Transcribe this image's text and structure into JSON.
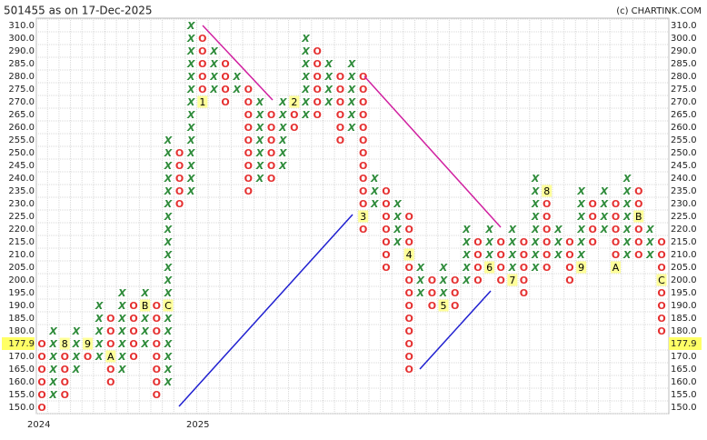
{
  "chart_data": {
    "type": "point_and_figure",
    "title": "501455 as on 17-Dec-2025",
    "watermark": "(c) CHARTINK.COM",
    "x_labels": [
      "2024",
      "2025"
    ],
    "colors": {
      "X": "#2e8b3a",
      "O": "#e53030",
      "marker_bg": "#ffff99",
      "last_bg": "#ffff66"
    },
    "grid": true,
    "yticks": [
      {
        "value": 310,
        "label": "310.0"
      },
      {
        "value": 300,
        "label": "300.0"
      },
      {
        "value": 290,
        "label": "290.0"
      },
      {
        "value": 285,
        "label": "285.0"
      },
      {
        "value": 280,
        "label": "280.0"
      },
      {
        "value": 275,
        "label": "275.0"
      },
      {
        "value": 270,
        "label": "270.0"
      },
      {
        "value": 265,
        "label": "265.0"
      },
      {
        "value": 260,
        "label": "260.0"
      },
      {
        "value": 255,
        "label": "255.0"
      },
      {
        "value": 250,
        "label": "250.0"
      },
      {
        "value": 245,
        "label": "245.0"
      },
      {
        "value": 240,
        "label": "240.0"
      },
      {
        "value": 235,
        "label": "235.0"
      },
      {
        "value": 230,
        "label": "230.0"
      },
      {
        "value": 225,
        "label": "225.0"
      },
      {
        "value": 220,
        "label": "220.0"
      },
      {
        "value": 215,
        "label": "215.0"
      },
      {
        "value": 210,
        "label": "210.0"
      },
      {
        "value": 205,
        "label": "205.0"
      },
      {
        "value": 200,
        "label": "200.0"
      },
      {
        "value": 195,
        "label": "195.0"
      },
      {
        "value": 190,
        "label": "190.0"
      },
      {
        "value": 185,
        "label": "185.0"
      },
      {
        "value": 180,
        "label": "180.0"
      },
      {
        "value": 170,
        "label": "170.0"
      },
      {
        "value": 165,
        "label": "165.0"
      },
      {
        "value": 160,
        "label": "160.0"
      },
      {
        "value": 155,
        "label": "155.0"
      },
      {
        "value": 150,
        "label": "150.0"
      }
    ],
    "last_price": {
      "value": 177.9,
      "label": "177.9"
    },
    "columns": [
      {
        "type": "O",
        "high": 175,
        "low": 150
      },
      {
        "type": "X",
        "high": 180,
        "low": 155
      },
      {
        "type": "O",
        "high": 175,
        "low": 155,
        "markers": [
          {
            "value": 175,
            "label": "8"
          }
        ]
      },
      {
        "type": "X",
        "high": 180,
        "low": 165
      },
      {
        "type": "O",
        "high": 175,
        "low": 170,
        "markers": [
          {
            "value": 175,
            "label": "9"
          }
        ]
      },
      {
        "type": "X",
        "high": 190,
        "low": 170
      },
      {
        "type": "O",
        "high": 185,
        "low": 160,
        "markers": [
          {
            "value": 170,
            "label": "A"
          }
        ]
      },
      {
        "type": "X",
        "high": 195,
        "low": 165
      },
      {
        "type": "O",
        "high": 190,
        "low": 170
      },
      {
        "type": "X",
        "high": 195,
        "low": 175,
        "markers": [
          {
            "value": 190,
            "label": "B"
          }
        ]
      },
      {
        "type": "O",
        "high": 190,
        "low": 155
      },
      {
        "type": "X",
        "high": 255,
        "low": 160,
        "markers": [
          {
            "value": 190,
            "label": "C"
          }
        ]
      },
      {
        "type": "O",
        "high": 250,
        "low": 230
      },
      {
        "type": "X",
        "high": 310,
        "low": 235
      },
      {
        "type": "O",
        "high": 300,
        "low": 270,
        "markers": [
          {
            "value": 270,
            "label": "1"
          }
        ]
      },
      {
        "type": "X",
        "high": 290,
        "low": 275
      },
      {
        "type": "O",
        "high": 285,
        "low": 270
      },
      {
        "type": "X",
        "high": 280,
        "low": 275
      },
      {
        "type": "O",
        "high": 275,
        "low": 235
      },
      {
        "type": "X",
        "high": 270,
        "low": 240
      },
      {
        "type": "O",
        "high": 265,
        "low": 240
      },
      {
        "type": "X",
        "high": 270,
        "low": 245
      },
      {
        "type": "O",
        "high": 270,
        "low": 260,
        "markers": [
          {
            "value": 270,
            "label": "2"
          }
        ]
      },
      {
        "type": "X",
        "high": 300,
        "low": 265
      },
      {
        "type": "O",
        "high": 290,
        "low": 265
      },
      {
        "type": "X",
        "high": 285,
        "low": 270
      },
      {
        "type": "O",
        "high": 280,
        "low": 255
      },
      {
        "type": "X",
        "high": 285,
        "low": 260
      },
      {
        "type": "O",
        "high": 280,
        "low": 220,
        "markers": [
          {
            "value": 225,
            "label": "3"
          }
        ]
      },
      {
        "type": "X",
        "high": 240,
        "low": 230
      },
      {
        "type": "O",
        "high": 235,
        "low": 205
      },
      {
        "type": "X",
        "high": 230,
        "low": 215
      },
      {
        "type": "O",
        "high": 225,
        "low": 165,
        "markers": [
          {
            "value": 210,
            "label": "4"
          }
        ]
      },
      {
        "type": "X",
        "high": 205,
        "low": 195
      },
      {
        "type": "O",
        "high": 200,
        "low": 190
      },
      {
        "type": "X",
        "high": 205,
        "low": 190,
        "markers": [
          {
            "value": 190,
            "label": "5"
          }
        ]
      },
      {
        "type": "O",
        "high": 200,
        "low": 190
      },
      {
        "type": "X",
        "high": 220,
        "low": 200
      },
      {
        "type": "O",
        "high": 215,
        "low": 200
      },
      {
        "type": "X",
        "high": 220,
        "low": 205,
        "markers": [
          {
            "value": 205,
            "label": "6"
          }
        ]
      },
      {
        "type": "O",
        "high": 215,
        "low": 200
      },
      {
        "type": "X",
        "high": 220,
        "low": 200,
        "markers": [
          {
            "value": 200,
            "label": "7"
          }
        ]
      },
      {
        "type": "O",
        "high": 215,
        "low": 195
      },
      {
        "type": "X",
        "high": 240,
        "low": 205
      },
      {
        "type": "O",
        "high": 235,
        "low": 205,
        "markers": [
          {
            "value": 235,
            "label": "8"
          }
        ]
      },
      {
        "type": "X",
        "high": 220,
        "low": 210
      },
      {
        "type": "O",
        "high": 215,
        "low": 200
      },
      {
        "type": "X",
        "high": 235,
        "low": 205,
        "markers": [
          {
            "value": 205,
            "label": "9"
          }
        ]
      },
      {
        "type": "O",
        "high": 230,
        "low": 215
      },
      {
        "type": "X",
        "high": 235,
        "low": 220
      },
      {
        "type": "O",
        "high": 230,
        "low": 205,
        "markers": [
          {
            "value": 205,
            "label": "A"
          }
        ]
      },
      {
        "type": "X",
        "high": 240,
        "low": 210
      },
      {
        "type": "O",
        "high": 235,
        "low": 210,
        "markers": [
          {
            "value": 225,
            "label": "B"
          }
        ]
      },
      {
        "type": "X",
        "high": 220,
        "low": 210
      },
      {
        "type": "O",
        "high": 215,
        "low": 180,
        "markers": [
          {
            "value": 200,
            "label": "C"
          }
        ]
      }
    ]
  }
}
